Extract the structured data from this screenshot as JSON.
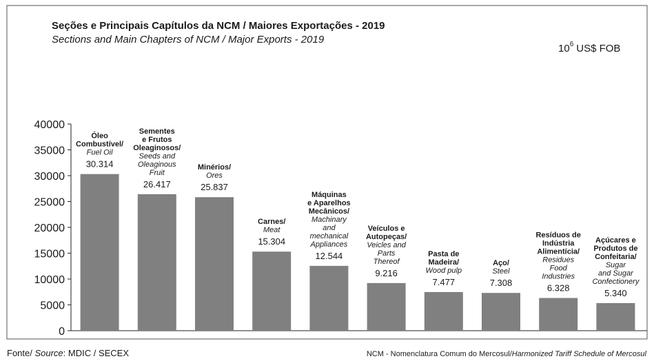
{
  "chart_data": {
    "type": "bar",
    "title": "Seções e Principais Capítulos da NCM / Maiores Exportações - 2019",
    "subtitle": "Sections and Main Chapters of NCM / Major Exports - 2019",
    "units": {
      "base": "10",
      "exp": "6",
      "rest": "US$ FOB"
    },
    "categories": [
      {
        "pt": [
          "Óleo",
          "Combustível/"
        ],
        "en": [
          "Fuel Oil"
        ]
      },
      {
        "pt": [
          "Sementes",
          "e Frutos",
          "Oleaginosos/"
        ],
        "en": [
          "Seeds and",
          "Oleaginous",
          "Fruit"
        ]
      },
      {
        "pt": [
          "Minérios/"
        ],
        "en": [
          "Ores"
        ]
      },
      {
        "pt": [
          "Carnes/"
        ],
        "en": [
          "Meat"
        ]
      },
      {
        "pt": [
          "Máquinas",
          "e Aparelhos",
          "Mecânicos/"
        ],
        "en": [
          "Machinary",
          "and",
          "mechanical",
          "Appliances"
        ]
      },
      {
        "pt": [
          "Veículos e",
          "Autopeças/"
        ],
        "en": [
          "Veicles and",
          "Parts",
          "Thereof"
        ]
      },
      {
        "pt": [
          "Pasta de",
          "Madeira/"
        ],
        "en": [
          "Wood pulp"
        ]
      },
      {
        "pt": [
          "Aço/"
        ],
        "en": [
          "Steel"
        ]
      },
      {
        "pt": [
          "Resíduos de",
          "Indústria",
          "Alimentícia/"
        ],
        "en": [
          "Residues",
          "Food",
          "Industries"
        ]
      },
      {
        "pt": [
          "Açúcares e",
          "Produtos de",
          "Confeitaria/"
        ],
        "en": [
          "Sugar",
          "and Sugar",
          "Confectionery"
        ]
      }
    ],
    "values": [
      30314,
      26417,
      25837,
      15304,
      12544,
      9216,
      7477,
      7308,
      6328,
      5340
    ],
    "value_labels": [
      "30.314",
      "26.417",
      "25.837",
      "15.304",
      "12.544",
      "9.216",
      "7.477",
      "7.308",
      "6.328",
      "5.340"
    ],
    "color": "#808080",
    "ylim": [
      0,
      40000
    ],
    "yticks": [
      0,
      5000,
      10000,
      15000,
      20000,
      25000,
      30000,
      35000,
      40000
    ],
    "source": {
      "prefix": "Fonte/ ",
      "italic": "Source",
      "rest": ": MDIC / SECEX"
    },
    "note": {
      "text": "NCM - Nomenclatura Comum do Mercosul/",
      "italic": "Harmonized Tariff Schedule of Mercosul"
    }
  }
}
